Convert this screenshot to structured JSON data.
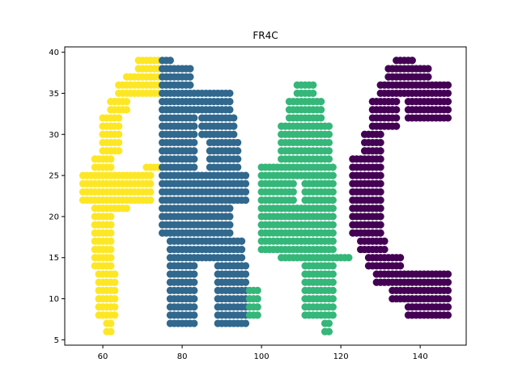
{
  "chart_data": {
    "type": "scatter",
    "title": "FR4C",
    "xlabel": "",
    "ylabel": "",
    "xlim": [
      50.4,
      151.6
    ],
    "ylim": [
      4.35,
      40.65
    ],
    "xticks": [
      60,
      80,
      100,
      120,
      140
    ],
    "yticks": [
      5,
      10,
      15,
      20,
      25,
      30,
      35,
      40
    ],
    "grid": false,
    "legend": "none",
    "colors": {
      "yellow": "#fde725",
      "blue": "#31688e",
      "green": "#35b779",
      "purple": "#440154"
    },
    "series": [
      {
        "color": "#fde725",
        "rects": [
          [
            69,
            74,
            38,
            39
          ],
          [
            66,
            74,
            37,
            37
          ],
          [
            64,
            74,
            35,
            36
          ],
          [
            62,
            66,
            33,
            34
          ],
          [
            60,
            64,
            28,
            32
          ],
          [
            58,
            62,
            26,
            27
          ],
          [
            55,
            72,
            22,
            25
          ],
          [
            71,
            75,
            26,
            26
          ],
          [
            58,
            66,
            21,
            21
          ],
          [
            58,
            62,
            14,
            20
          ],
          [
            59,
            63,
            8,
            13
          ],
          [
            61,
            62,
            6,
            7
          ]
        ]
      },
      {
        "color": "#31688e",
        "rects": [
          [
            75,
            77,
            39,
            39
          ],
          [
            75,
            82,
            36,
            38
          ],
          [
            75,
            92,
            33,
            35
          ],
          [
            75,
            83,
            30,
            32
          ],
          [
            85,
            93,
            30,
            32
          ],
          [
            75,
            83,
            26,
            29
          ],
          [
            87,
            94,
            26,
            29
          ],
          [
            75,
            96,
            22,
            25
          ],
          [
            75,
            92,
            18,
            21
          ],
          [
            77,
            95,
            15,
            17
          ],
          [
            77,
            83,
            7,
            14
          ],
          [
            89,
            96,
            7,
            14
          ]
        ]
      },
      {
        "color": "#35b779",
        "rects": [
          [
            109,
            113,
            35,
            36
          ],
          [
            107,
            115,
            32,
            34
          ],
          [
            105,
            117,
            27,
            31
          ],
          [
            100,
            118,
            25,
            26
          ],
          [
            100,
            108,
            22,
            24
          ],
          [
            111,
            118,
            22,
            24
          ],
          [
            100,
            118,
            16,
            21
          ],
          [
            105,
            122,
            15,
            15
          ],
          [
            111,
            118,
            8,
            14
          ],
          [
            116,
            117,
            6,
            7
          ],
          [
            97,
            99,
            8,
            11
          ]
        ]
      },
      {
        "color": "#440154",
        "rects": [
          [
            134,
            138,
            39,
            39
          ],
          [
            132,
            142,
            37,
            38
          ],
          [
            130,
            147,
            35,
            36
          ],
          [
            128,
            134,
            31,
            34
          ],
          [
            137,
            147,
            32,
            34
          ],
          [
            126,
            130,
            28,
            30
          ],
          [
            123,
            130,
            18,
            27
          ],
          [
            125,
            131,
            16,
            17
          ],
          [
            127,
            135,
            14,
            15
          ],
          [
            129,
            147,
            12,
            13
          ],
          [
            133,
            147,
            10,
            11
          ],
          [
            137,
            147,
            8,
            9
          ]
        ]
      }
    ]
  }
}
